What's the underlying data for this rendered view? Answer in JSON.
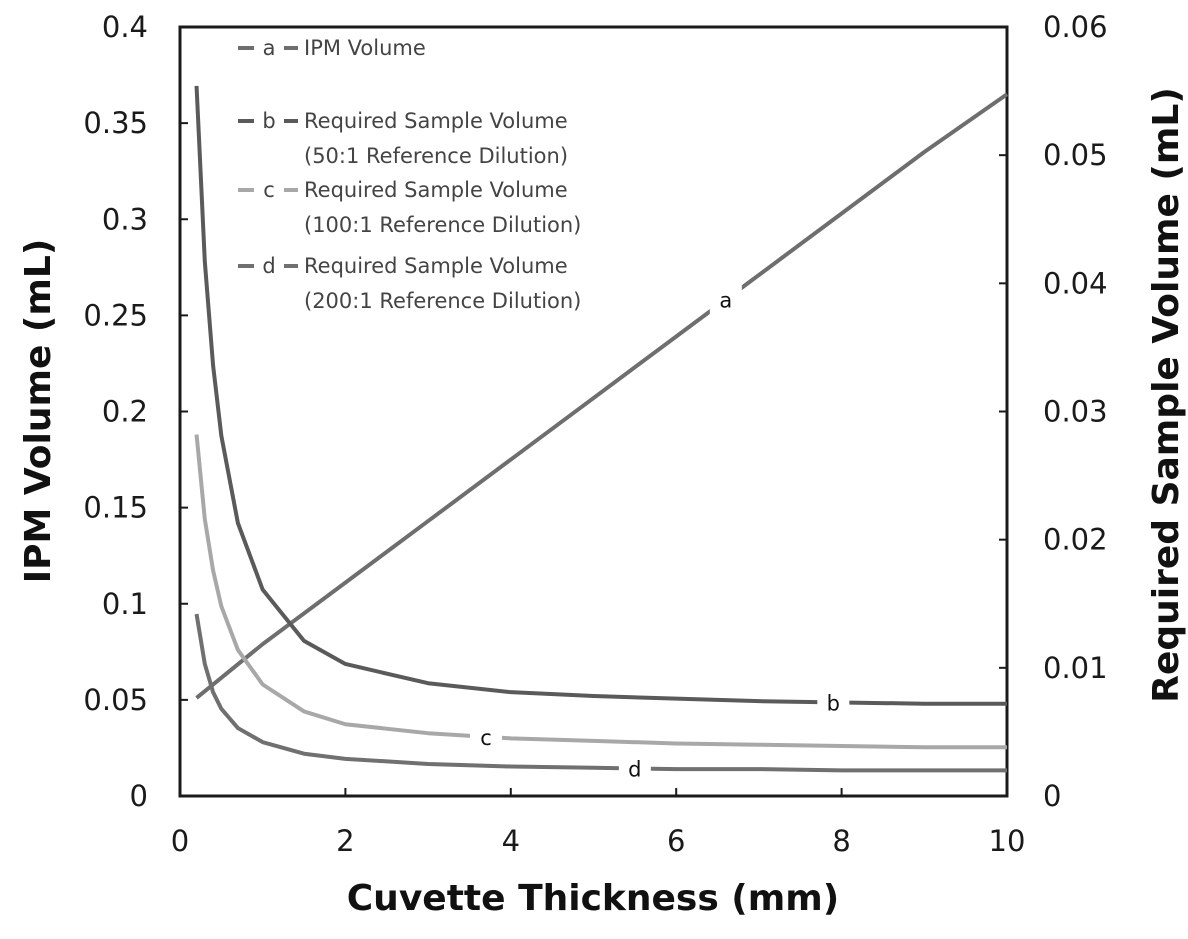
{
  "chart_data": {
    "type": "line",
    "xlabel": "Cuvette Thickness (mm)",
    "ylabel_left": "IPM Volume (mL)",
    "ylabel_right": "Required Sample Volume (mL)",
    "xlim": [
      0,
      10
    ],
    "ylim_left": [
      0,
      0.4
    ],
    "ylim_right": [
      0,
      0.06
    ],
    "x_ticks": [
      "0",
      "2",
      "4",
      "6",
      "8",
      "10"
    ],
    "y_left_ticks": [
      "0",
      "0.05",
      "0.1",
      "0.15",
      "0.2",
      "0.25",
      "0.3",
      "0.35",
      "0.4"
    ],
    "y_right_ticks": [
      "0",
      "0.01",
      "0.02",
      "0.03",
      "0.04",
      "0.05",
      "0.06"
    ],
    "grid": false,
    "legend_position": "top-left",
    "legend": [
      {
        "key": "a",
        "lines": [
          "IPM Volume"
        ]
      },
      {
        "key": "b",
        "lines": [
          "Required Sample Volume",
          "(50:1 Reference Dilution)"
        ]
      },
      {
        "key": "c",
        "lines": [
          "Required Sample Volume",
          "(100:1 Reference Dilution)"
        ]
      },
      {
        "key": "d",
        "lines": [
          "Required Sample Volume",
          "(200:1 Reference Dilution)"
        ]
      }
    ],
    "series": [
      {
        "name": "a",
        "axis": "left",
        "color": "#6e6e6e",
        "x": [
          0.2,
          1,
          2,
          3,
          4,
          5,
          6,
          7,
          8,
          9,
          10
        ],
        "y": [
          0.051,
          0.079,
          0.111,
          0.143,
          0.175,
          0.207,
          0.239,
          0.271,
          0.303,
          0.335,
          0.365
        ],
        "label_x": 6.6
      },
      {
        "name": "b",
        "axis": "right",
        "color": "#5a5a5a",
        "x": [
          0.2,
          0.3,
          0.4,
          0.5,
          0.7,
          1.0,
          1.5,
          2,
          3,
          4,
          5,
          6,
          7,
          8,
          9,
          10
        ],
        "y": [
          0.0554,
          0.0417,
          0.0336,
          0.0281,
          0.0213,
          0.0161,
          0.0121,
          0.0103,
          0.0088,
          0.0081,
          0.0078,
          0.0076,
          0.0074,
          0.0073,
          0.0072,
          0.0072
        ],
        "label_x": 7.9
      },
      {
        "name": "c",
        "axis": "right",
        "color": "#a8a8a8",
        "x": [
          0.2,
          0.3,
          0.4,
          0.5,
          0.7,
          1.0,
          1.5,
          2,
          3,
          4,
          5,
          6,
          7,
          8,
          9,
          10
        ],
        "y": [
          0.0282,
          0.0216,
          0.0176,
          0.0148,
          0.0114,
          0.0087,
          0.0066,
          0.0056,
          0.0049,
          0.0045,
          0.0043,
          0.0041,
          0.004,
          0.0039,
          0.0038,
          0.0038
        ],
        "label_x": 3.7
      },
      {
        "name": "d",
        "axis": "right",
        "color": "#707070",
        "x": [
          0.2,
          0.3,
          0.4,
          0.5,
          0.7,
          1.0,
          1.5,
          2,
          3,
          4,
          5,
          6,
          7,
          8,
          9,
          10
        ],
        "y": [
          0.0142,
          0.0103,
          0.0081,
          0.0068,
          0.0053,
          0.0042,
          0.0033,
          0.0029,
          0.0025,
          0.0023,
          0.0022,
          0.0021,
          0.0021,
          0.002,
          0.002,
          0.002
        ],
        "label_x": 5.5
      }
    ]
  }
}
